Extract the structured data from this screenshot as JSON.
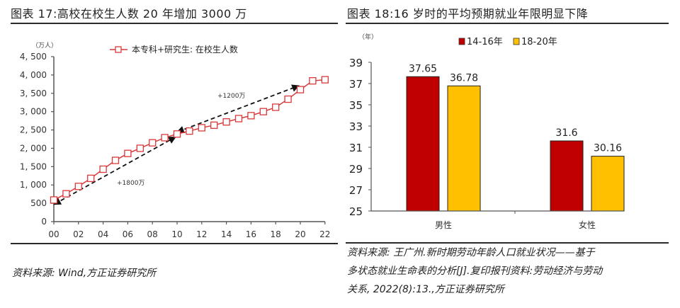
{
  "left": {
    "title": "图表 17:高校在校生人数 20 年增加 3000 万",
    "source": "资料来源: Wind,方正证券研究所",
    "unit_label": "（万人）",
    "legend_label": "本专科+研究生: 在校生人数",
    "annotation_1": "+1800万",
    "annotation_2": "+1200万"
  },
  "right": {
    "title": "图表 18:16 岁时的平均预期就业年限明显下降",
    "unit_label": "（年）",
    "source_lines": [
      "资料来源: 王广州.新时期劳动年龄人口就业状况——基于",
      "多状态就业生命表的分析[J].复印报刊资料:劳动经济与劳动",
      "关系, 2022(8):13.,方正证券研究所"
    ]
  },
  "colors": {
    "line_red": "#d9393a",
    "bar_red": "#c00000",
    "bar_yellow": "#ffc000",
    "axis": "#555555",
    "arrow": "#111111"
  },
  "chart_data": [
    {
      "type": "line",
      "title": "图表 17:高校在校生人数 20 年增加 3000 万",
      "ylabel": "万人",
      "xlabel": "",
      "x": [
        "00",
        "01",
        "02",
        "03",
        "04",
        "05",
        "06",
        "07",
        "08",
        "09",
        "10",
        "11",
        "12",
        "13",
        "14",
        "15",
        "16",
        "17",
        "18",
        "19",
        "20",
        "21",
        "22"
      ],
      "xticks": [
        "00",
        "02",
        "04",
        "06",
        "08",
        "10",
        "12",
        "14",
        "16",
        "18",
        "20",
        "22"
      ],
      "yticks": [
        "0",
        "500",
        "1, 000",
        "1, 500",
        "2, 000",
        "2, 500",
        "3, 000",
        "3, 500",
        "4, 000",
        "4, 500"
      ],
      "ylim": [
        0,
        4500
      ],
      "series": [
        {
          "name": "本专科+研究生: 在校生人数",
          "values": [
            590,
            760,
            960,
            1180,
            1430,
            1670,
            1860,
            2000,
            2150,
            2290,
            2390,
            2470,
            2560,
            2630,
            2720,
            2810,
            2890,
            3000,
            3120,
            3340,
            3600,
            3840,
            3870
          ]
        }
      ],
      "annotations": [
        {
          "text": "+1800万",
          "from": [
            "00",
            480
          ],
          "to": [
            "10",
            2300
          ]
        },
        {
          "text": "+1200万",
          "from": [
            "10",
            2450
          ],
          "to": [
            "20",
            3700
          ]
        }
      ],
      "legend_position": "top",
      "grid": false
    },
    {
      "type": "bar",
      "title": "图表 18:16 岁时的平均预期就业年限明显下降",
      "ylabel": "年",
      "xlabel": "",
      "categories": [
        "男性",
        "女性"
      ],
      "series": [
        {
          "name": "14-16年",
          "values": [
            37.65,
            31.6
          ]
        },
        {
          "name": "18-20年",
          "values": [
            36.78,
            30.16
          ]
        }
      ],
      "yticks": [
        "25",
        "27",
        "29",
        "31",
        "33",
        "35",
        "37",
        "39"
      ],
      "ylim": [
        25,
        39
      ],
      "legend_position": "top",
      "grid": false,
      "data_labels": true
    }
  ]
}
